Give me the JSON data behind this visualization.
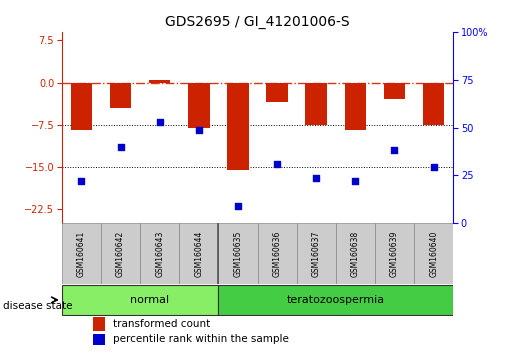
{
  "title": "GDS2695 / GI_41201006-S",
  "samples": [
    "GSM160641",
    "GSM160642",
    "GSM160643",
    "GSM160644",
    "GSM160635",
    "GSM160636",
    "GSM160637",
    "GSM160638",
    "GSM160639",
    "GSM160640"
  ],
  "bar_values": [
    -8.5,
    -4.5,
    0.5,
    -8.0,
    -15.5,
    -3.5,
    -7.5,
    -8.5,
    -3.0,
    -7.5
  ],
  "scatter_values": [
    -17.5,
    -11.5,
    -7.0,
    -8.5,
    -22.0,
    -14.5,
    -17.0,
    -17.5,
    -12.0,
    -15.0
  ],
  "bar_color": "#cc2200",
  "scatter_color": "#0000cc",
  "ylim_left": [
    -25,
    9
  ],
  "ylim_right": [
    0,
    100
  ],
  "yticks_left": [
    7.5,
    0.0,
    -7.5,
    -15.0,
    -22.5
  ],
  "yticks_right": [
    100,
    75,
    50,
    25,
    0
  ],
  "normal_color": "#88ee66",
  "terato_color": "#44cc44",
  "label_bar": "transformed count",
  "label_scatter": "percentile rank within the sample",
  "disease_state_label": "disease state",
  "normal_label": "normal",
  "terato_label": "teratozoospermia",
  "background_color": "#ffffff",
  "bar_width": 0.55,
  "sample_label_color": "#cccccc",
  "title_fontsize": 10
}
